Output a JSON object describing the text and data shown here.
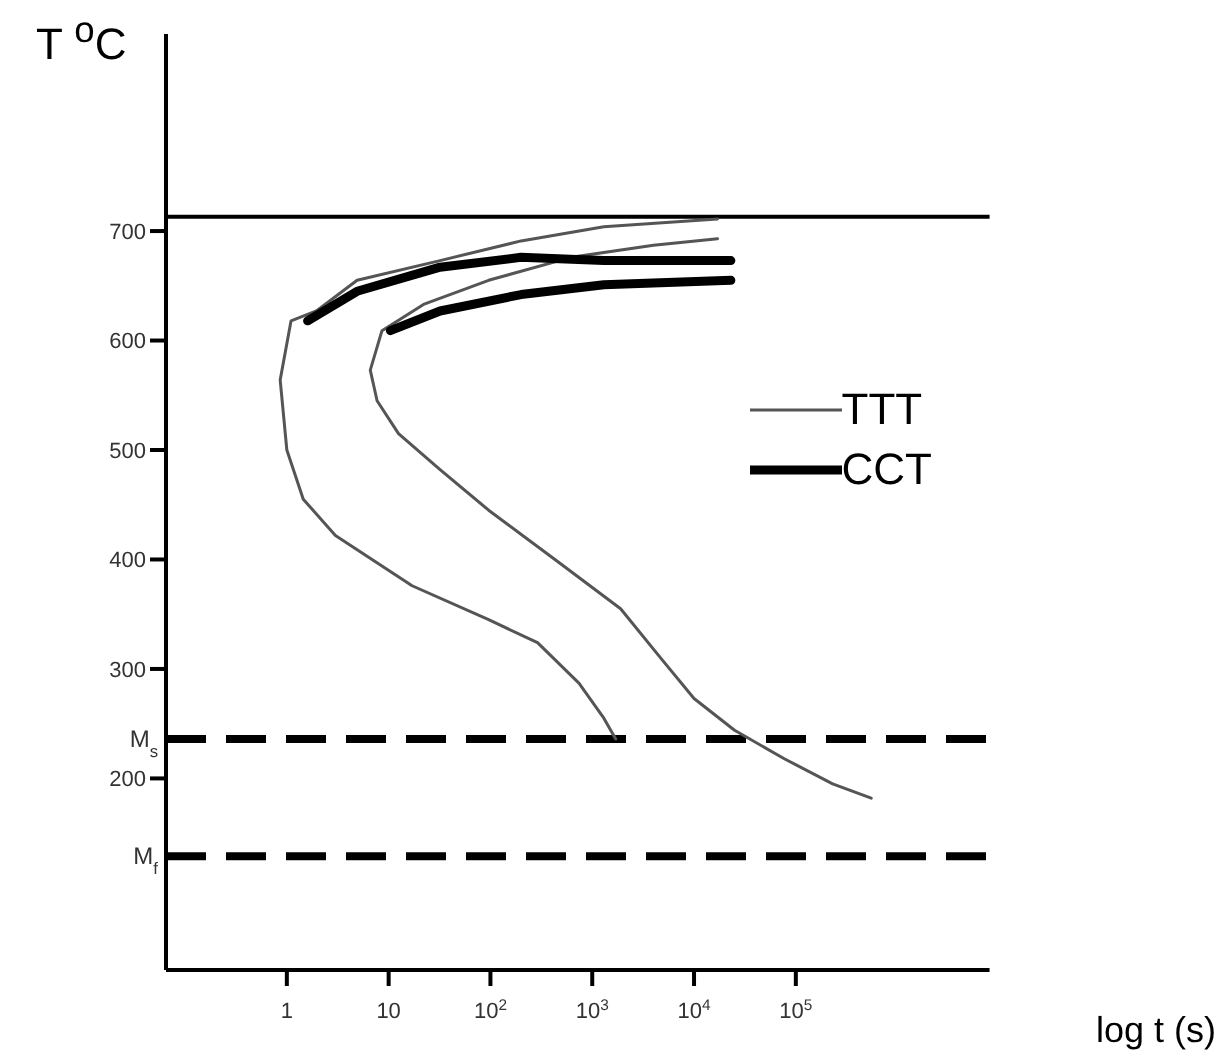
{
  "chart_data": {
    "type": "line",
    "xlabel": "log t (s)",
    "ylabel": "T $^{o}$C",
    "log": "x",
    "xlim": [
      0.065,
      8000000
    ],
    "xticks": [
      1,
      10,
      {
        "value": 100,
        "label": "10$^{2}$"
      },
      {
        "value": 1000,
        "label": "10$^{3}$"
      },
      {
        "value": 10000,
        "label": "10$^{4}$"
      },
      {
        "value": 100000,
        "label": "10$^{5}$"
      }
    ],
    "ylim": [
      25,
      880
    ],
    "yticks": [
      200,
      300,
      400,
      500,
      600,
      700
    ],
    "grid": false,
    "legend": "right",
    "marker": "none",
    "line_style": "solid",
    "series": [
      {
        "name": "TTT",
        "color": "#555555",
        "x": [
          17000,
          1300,
          200,
          32,
          4.9,
          1.95,
          1.1,
          0.86,
          1,
          1.45,
          3,
          17,
          96,
          290,
          740,
          1300,
          1700
        ],
        "values": [
          711,
          704,
          691,
          673,
          655,
          627,
          618,
          564,
          500,
          455,
          422,
          376,
          345,
          324,
          287,
          255,
          236
        ]
      },
      {
        "color": "#555555",
        "x": [
          17000,
          4000,
          620,
          96,
          22,
          8.6,
          6.6,
          7.7,
          12.5,
          32,
          96,
          430,
          1900,
          4800,
          10000,
          25000,
          77000,
          230000,
          550000
        ],
        "values": [
          693,
          687,
          676,
          655,
          633,
          609,
          573,
          545,
          515,
          482,
          445,
          400,
          355,
          309,
          273,
          244,
          218,
          195,
          182
        ]
      },
      {
        "name": "CCT",
        "color": "#000000",
        "x": [
          1.6,
          4.9,
          32,
          200,
          1300,
          23000
        ],
        "values": [
          618,
          645,
          667,
          676,
          673,
          673
        ]
      },
      {
        "color": "#000000",
        "x": [
          10.4,
          32,
          200,
          1300,
          23000
        ],
        "values": [
          609,
          627,
          642,
          651,
          655
        ]
      }
    ],
    "ref_lines": [
      {
        "axis": "y",
        "value": 713,
        "label": null,
        "line_style": "solid"
      },
      {
        "axis": "y",
        "value": 236,
        "label": "M$_{s}$",
        "line_style": "dashed"
      },
      {
        "axis": "y",
        "value": 129,
        "label": "M$_{f}$",
        "line_style": "dashed"
      }
    ]
  }
}
